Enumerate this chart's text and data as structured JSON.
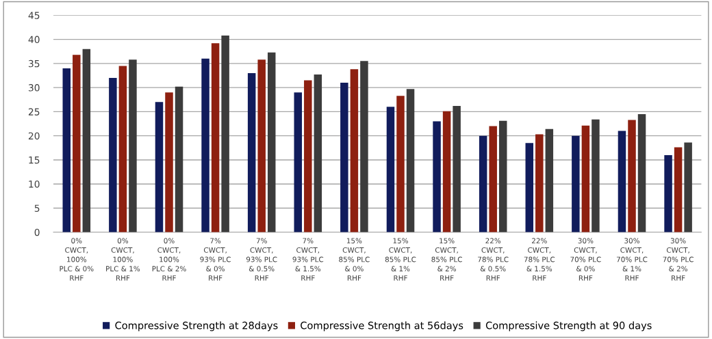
{
  "chart_data": {
    "type": "bar",
    "categories": [
      "0%\nCWCT,\n100%\nPLC & 0%\nRHF",
      "0%\nCWCT,\n100%\nPLC & 1%\nRHF",
      "0%\nCWCT,\n100%\nPLC & 2%\nRHF",
      "7%\nCWCT,\n93% PLC\n& 0%\nRHF",
      "7%\nCWCT,\n93% PLC\n& 0.5%\nRHF",
      "7%\nCWCT,\n93% PLC\n& 1.5%\nRHF",
      "15%\nCWCT,\n85% PLC\n& 0%\nRHF",
      "15%\nCWCT,\n85% PLC\n& 1%\nRHF",
      "15%\nCWCT,\n85% PLC\n& 2%\nRHF",
      "22%\nCWCT,\n78% PLC\n& 0.5%\nRHF",
      "22%\nCWCT,\n78% PLC\n& 1.5%\nRHF",
      "30%\nCWCT,\n70% PLC\n& 0%\nRHF",
      "30%\nCWCT,\n70% PLC\n& 1%\nRHF",
      "30%\nCWCT,\n70% PLC\n& 2%\nRHF"
    ],
    "series": [
      {
        "name": "Compressive Strength at 28days",
        "color": "#111c5c",
        "values": [
          34,
          32,
          27,
          36,
          33,
          29,
          31,
          26,
          23,
          20,
          18.5,
          20,
          21,
          16
        ]
      },
      {
        "name": "Compressive Strength at 56days",
        "color": "#8e2010",
        "values": [
          36.8,
          34.5,
          29,
          39.2,
          35.8,
          31.5,
          33.8,
          28.3,
          25.1,
          22,
          20.3,
          22.1,
          23.3,
          17.6
        ]
      },
      {
        "name": "Compressive Strength at 90 days",
        "color": "#3c3c3c",
        "values": [
          38,
          35.8,
          30.2,
          40.8,
          37.3,
          32.7,
          35.5,
          29.7,
          26.2,
          23.1,
          21.4,
          23.4,
          24.5,
          18.6
        ]
      }
    ],
    "ylim": [
      0,
      45
    ],
    "yticks": [
      0,
      5,
      10,
      15,
      20,
      25,
      30,
      35,
      40,
      45
    ],
    "grid": "y",
    "legend": "bottom"
  }
}
